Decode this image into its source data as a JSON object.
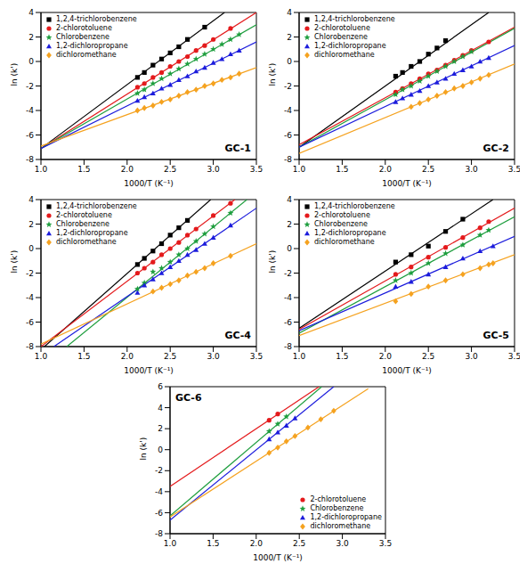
{
  "chart_data": [
    {
      "type": "scatter",
      "title": "GC-1",
      "x_label": "1000/T (K⁻¹)",
      "y_label": "ln (k')",
      "legend": "upper left",
      "xlim": [
        1.0,
        3.5
      ],
      "xticks": [
        {
          "value": 1.0,
          "label": "1.0"
        },
        1.5,
        {
          "value": 2.0,
          "label": "2.0"
        },
        2.5,
        {
          "value": 3.0,
          "label": "3.0"
        },
        3.5
      ],
      "ylim": [
        -8,
        4
      ],
      "yticks": [
        -8,
        -6,
        -4,
        -2,
        0,
        2,
        4
      ],
      "series": [
        {
          "name": "1,2,4-trichlorobenzene",
          "color": "#000000",
          "marker": "square",
          "x": [
            2.12,
            2.2,
            2.3,
            2.4,
            2.5,
            2.6,
            2.7,
            2.9
          ],
          "values": [
            -1.3,
            -0.9,
            -0.3,
            0.2,
            0.7,
            1.2,
            1.8,
            2.8
          ],
          "fit_x": [
            1.0,
            3.13
          ],
          "fit_values": [
            -7.1,
            4.0
          ]
        },
        {
          "name": "2-chlorotoluene",
          "color": "#e41a1c",
          "marker": "circle",
          "x": [
            2.12,
            2.2,
            2.3,
            2.4,
            2.5,
            2.6,
            2.7,
            2.8,
            2.9,
            3.0,
            3.2
          ],
          "values": [
            -2.1,
            -1.8,
            -1.3,
            -0.9,
            -0.4,
            0.0,
            0.4,
            0.9,
            1.3,
            1.8,
            2.7
          ],
          "fit_x": [
            1.0,
            3.5
          ],
          "fit_values": [
            -7.1,
            4.0
          ]
        },
        {
          "name": "Chlorobenzene",
          "color": "#1e9e3e",
          "marker": "star",
          "x": [
            2.12,
            2.2,
            2.3,
            2.4,
            2.5,
            2.6,
            2.7,
            2.8,
            2.9,
            3.0,
            3.1,
            3.2,
            3.3
          ],
          "values": [
            -2.6,
            -2.3,
            -1.8,
            -1.4,
            -1.0,
            -0.6,
            -0.2,
            0.2,
            0.6,
            1.0,
            1.4,
            1.8,
            2.2
          ],
          "fit_x": [
            1.0,
            3.5
          ],
          "fit_values": [
            -7.1,
            3.0
          ]
        },
        {
          "name": "1,2-dichloropropane",
          "color": "#1c1cdc",
          "marker": "triangle",
          "x": [
            2.12,
            2.2,
            2.3,
            2.4,
            2.5,
            2.6,
            2.7,
            2.8,
            2.9,
            3.0,
            3.1,
            3.2,
            3.3
          ],
          "values": [
            -3.2,
            -2.9,
            -2.6,
            -2.2,
            -1.9,
            -1.5,
            -1.2,
            -0.8,
            -0.5,
            -0.1,
            0.2,
            0.6,
            0.9
          ],
          "fit_x": [
            1.0,
            3.5
          ],
          "fit_values": [
            -7.1,
            1.6
          ]
        },
        {
          "name": "dichloromethane",
          "color": "#f5a21f",
          "marker": "diamond",
          "x": [
            2.12,
            2.2,
            2.3,
            2.4,
            2.5,
            2.6,
            2.7,
            2.8,
            2.9,
            3.0,
            3.1,
            3.2,
            3.3
          ],
          "values": [
            -4.0,
            -3.8,
            -3.6,
            -3.3,
            -3.1,
            -2.8,
            -2.5,
            -2.3,
            -2.0,
            -1.8,
            -1.5,
            -1.3,
            -1.0
          ],
          "fit_x": [
            1.0,
            3.5
          ],
          "fit_values": [
            -6.9,
            -0.5
          ]
        }
      ]
    },
    {
      "type": "scatter",
      "title": "GC-2",
      "x_label": "1000/T (K⁻¹)",
      "y_label": "ln (k')",
      "legend": "upper left",
      "xlim": [
        1.0,
        3.5
      ],
      "xticks": [
        {
          "value": 1.0,
          "label": "1.0"
        },
        1.5,
        {
          "value": 2.0,
          "label": "2.0"
        },
        2.5,
        {
          "value": 3.0,
          "label": "3.0"
        },
        3.5
      ],
      "ylim": [
        -8,
        4
      ],
      "yticks": [
        -8,
        -6,
        -4,
        -2,
        0,
        2,
        4
      ],
      "series": [
        {
          "name": "1,2,4-trichlorobenzene",
          "color": "#000000",
          "marker": "square",
          "x": [
            2.12,
            2.2,
            2.3,
            2.4,
            2.5,
            2.6,
            2.7
          ],
          "values": [
            -1.2,
            -0.9,
            -0.4,
            0.0,
            0.6,
            1.1,
            1.7
          ],
          "fit_x": [
            1.0,
            3.2
          ],
          "fit_values": [
            -7.0,
            4.0
          ]
        },
        {
          "name": "2-chlorotoluene",
          "color": "#e41a1c",
          "marker": "circle",
          "x": [
            2.12,
            2.2,
            2.3,
            2.4,
            2.5,
            2.6,
            2.7,
            2.8,
            2.9,
            3.0,
            3.2
          ],
          "values": [
            -2.5,
            -2.2,
            -1.8,
            -1.4,
            -1.0,
            -0.7,
            -0.3,
            0.1,
            0.5,
            0.9,
            1.6
          ],
          "fit_x": [
            1.0,
            3.5
          ],
          "fit_values": [
            -6.8,
            2.8
          ]
        },
        {
          "name": "Chlorobenzene",
          "color": "#1e9e3e",
          "marker": "star",
          "x": [
            2.12,
            2.2,
            2.3,
            2.4,
            2.5,
            2.6,
            2.7,
            2.8,
            2.9,
            3.0
          ],
          "values": [
            -2.7,
            -2.3,
            -2.0,
            -1.6,
            -1.2,
            -0.8,
            -0.4,
            0.0,
            0.4,
            0.8
          ],
          "fit_x": [
            1.0,
            3.5
          ],
          "fit_values": [
            -7.0,
            2.7
          ]
        },
        {
          "name": "1,2-dichloropropane",
          "color": "#1c1cdc",
          "marker": "triangle",
          "x": [
            2.12,
            2.2,
            2.3,
            2.4,
            2.5,
            2.6,
            2.7,
            2.8,
            2.9,
            3.0,
            3.1,
            3.2
          ],
          "values": [
            -3.3,
            -3.0,
            -2.7,
            -2.4,
            -2.0,
            -1.7,
            -1.4,
            -1.0,
            -0.7,
            -0.4,
            0.0,
            0.3
          ],
          "fit_x": [
            1.0,
            3.5
          ],
          "fit_values": [
            -7.0,
            1.3
          ]
        },
        {
          "name": "dichloromethane",
          "color": "#f5a21f",
          "marker": "diamond",
          "x": [
            2.3,
            2.4,
            2.5,
            2.6,
            2.7,
            2.8,
            2.9,
            3.0,
            3.1,
            3.2
          ],
          "values": [
            -3.7,
            -3.4,
            -3.1,
            -2.8,
            -2.5,
            -2.2,
            -2.0,
            -1.7,
            -1.4,
            -1.1
          ],
          "fit_x": [
            1.0,
            3.5
          ],
          "fit_values": [
            -7.5,
            -0.2
          ]
        }
      ]
    },
    {
      "type": "scatter",
      "title": "GC-4",
      "x_label": "1000/T (K⁻¹)",
      "y_label": "ln (k')",
      "legend": "upper left",
      "xlim": [
        1.0,
        3.5
      ],
      "xticks": [
        {
          "value": 1.0,
          "label": "1.0"
        },
        1.5,
        {
          "value": 2.0,
          "label": "2.0"
        },
        2.5,
        {
          "value": 3.0,
          "label": "3.0"
        },
        3.5
      ],
      "ylim": [
        -8,
        4
      ],
      "yticks": [
        -8,
        -6,
        -4,
        -2,
        0,
        2,
        4
      ],
      "series": [
        {
          "name": "1,2,4-trichlorobenzene",
          "color": "#000000",
          "marker": "square",
          "x": [
            2.12,
            2.2,
            2.3,
            2.4,
            2.5,
            2.6,
            2.7
          ],
          "values": [
            -1.3,
            -0.8,
            -0.2,
            0.4,
            1.1,
            1.7,
            2.3
          ],
          "fit_x": [
            1.04,
            2.97
          ],
          "fit_values": [
            -8.0,
            4.0
          ]
        },
        {
          "name": "2-chlorotoluene",
          "color": "#e41a1c",
          "marker": "circle",
          "x": [
            2.12,
            2.2,
            2.3,
            2.4,
            2.5,
            2.6,
            2.7,
            2.8,
            3.0,
            3.2
          ],
          "values": [
            -2.0,
            -1.6,
            -1.1,
            -0.5,
            0.0,
            0.5,
            1.1,
            1.6,
            2.7,
            3.7
          ],
          "fit_x": [
            1.0,
            3.25
          ],
          "fit_values": [
            -8.0,
            4.0
          ]
        },
        {
          "name": "Chlorobenzene",
          "color": "#1e9e3e",
          "marker": "star",
          "x": [
            2.12,
            2.2,
            2.3,
            2.4,
            2.5,
            2.6,
            2.7,
            2.8,
            2.9,
            3.0,
            3.2
          ],
          "values": [
            -3.3,
            -2.8,
            -1.9,
            -1.6,
            -1.1,
            -0.5,
            0.0,
            0.6,
            1.2,
            1.8,
            2.9
          ],
          "fit_x": [
            1.3,
            3.39
          ],
          "fit_values": [
            -8.0,
            4.0
          ]
        },
        {
          "name": "1,2-dichloropropane",
          "color": "#1c1cdc",
          "marker": "triangle",
          "x": [
            2.12,
            2.2,
            2.3,
            2.4,
            2.5,
            2.6,
            2.7,
            2.8,
            2.9,
            3.0,
            3.2
          ],
          "values": [
            -3.6,
            -3.0,
            -2.5,
            -2.0,
            -1.5,
            -1.0,
            -0.5,
            -0.1,
            0.4,
            0.9,
            1.9
          ],
          "fit_x": [
            1.15,
            3.5
          ],
          "fit_values": [
            -8.0,
            3.3
          ]
        },
        {
          "name": "dichloromethane",
          "color": "#f5a21f",
          "marker": "diamond",
          "x": [
            2.3,
            2.4,
            2.5,
            2.6,
            2.7,
            2.8,
            2.9,
            3.0,
            3.2
          ],
          "values": [
            -3.5,
            -3.2,
            -2.9,
            -2.6,
            -2.2,
            -1.9,
            -1.6,
            -1.2,
            -0.6
          ],
          "fit_x": [
            1.0,
            3.5
          ],
          "fit_values": [
            -7.8,
            0.4
          ]
        }
      ]
    },
    {
      "type": "scatter",
      "title": "GC-5",
      "x_label": "1000/T (K⁻¹)",
      "y_label": "ln (k')",
      "legend": "upper left",
      "xlim": [
        1.0,
        3.5
      ],
      "xticks": [
        {
          "value": 1.0,
          "label": "1.0"
        },
        1.5,
        {
          "value": 2.0,
          "label": "2.0"
        },
        2.5,
        {
          "value": 3.0,
          "label": "3.0"
        },
        3.5
      ],
      "ylim": [
        -8,
        4
      ],
      "yticks": [
        -8,
        -6,
        -4,
        -2,
        0,
        2,
        4
      ],
      "series": [
        {
          "name": "1,2,4-trichlorobenzene",
          "color": "#000000",
          "marker": "square",
          "x": [
            2.12,
            2.3,
            2.5,
            2.7,
            2.9
          ],
          "values": [
            -1.1,
            -0.5,
            0.2,
            1.4,
            2.4
          ],
          "fit_x": [
            1.0,
            3.25
          ],
          "fit_values": [
            -6.5,
            4.0
          ]
        },
        {
          "name": "2-chlorotoluene",
          "color": "#e41a1c",
          "marker": "circle",
          "x": [
            2.12,
            2.3,
            2.5,
            2.7,
            2.9,
            3.1,
            3.2
          ],
          "values": [
            -2.1,
            -1.5,
            -0.7,
            0.1,
            0.9,
            1.7,
            2.2
          ],
          "fit_x": [
            1.0,
            3.5
          ],
          "fit_values": [
            -6.6,
            3.3
          ]
        },
        {
          "name": "Chlorobenzene",
          "color": "#1e9e3e",
          "marker": "star",
          "x": [
            2.12,
            2.3,
            2.5,
            2.7,
            2.9,
            3.1,
            3.2
          ],
          "values": [
            -2.6,
            -2.0,
            -1.2,
            -0.4,
            0.3,
            1.1,
            1.5
          ],
          "fit_x": [
            1.0,
            3.5
          ],
          "fit_values": [
            -6.9,
            2.6
          ]
        },
        {
          "name": "1,2-dichloropropane",
          "color": "#1c1cdc",
          "marker": "triangle",
          "x": [
            2.12,
            2.3,
            2.5,
            2.7,
            2.9,
            3.1,
            3.25
          ],
          "values": [
            -3.1,
            -2.7,
            -2.1,
            -1.5,
            -0.8,
            -0.2,
            0.2
          ],
          "fit_x": [
            1.0,
            3.5
          ],
          "fit_values": [
            -6.7,
            1.0
          ]
        },
        {
          "name": "dichloromethane",
          "color": "#f5a21f",
          "marker": "diamond",
          "x": [
            2.12,
            2.3,
            2.5,
            2.7,
            2.9,
            3.1,
            3.2,
            3.25
          ],
          "values": [
            -4.3,
            -3.7,
            -3.1,
            -2.6,
            -2.1,
            -1.6,
            -1.3,
            -1.2
          ],
          "fit_x": [
            1.0,
            3.5
          ],
          "fit_values": [
            -7.1,
            -0.5
          ]
        }
      ]
    },
    {
      "type": "scatter",
      "title": "GC-6",
      "x_label": "1000/T (K⁻¹)",
      "y_label": "ln (k')",
      "legend": "lower right",
      "xlim": [
        1.0,
        3.5
      ],
      "xticks": [
        {
          "value": 1.0,
          "label": "1.0"
        },
        1.5,
        {
          "value": 2.0,
          "label": "2.0"
        },
        2.5,
        {
          "value": 3.0,
          "label": "3.0"
        },
        3.5
      ],
      "ylim": [
        -8,
        6
      ],
      "yticks": [
        -8,
        -6,
        -4,
        -2,
        0,
        2,
        4,
        6
      ],
      "series": [
        {
          "name": "2-chlorotoluene",
          "color": "#e41a1c",
          "marker": "circle",
          "x": [
            2.15,
            2.25
          ],
          "values": [
            2.8,
            3.4
          ],
          "fit_x": [
            1.0,
            2.73
          ],
          "fit_values": [
            -3.5,
            6.0
          ]
        },
        {
          "name": "Chlorobenzene",
          "color": "#1e9e3e",
          "marker": "star",
          "x": [
            2.15,
            2.25,
            2.35
          ],
          "values": [
            1.75,
            2.45,
            3.15
          ],
          "fit_x": [
            1.0,
            2.76
          ],
          "fit_values": [
            -6.3,
            6.0
          ]
        },
        {
          "name": "1,2-dichloropropane",
          "color": "#1c1cdc",
          "marker": "triangle",
          "x": [
            2.15,
            2.25,
            2.35,
            2.45
          ],
          "values": [
            1.0,
            1.65,
            2.3,
            3.0
          ],
          "fit_x": [
            1.0,
            2.9
          ],
          "fit_values": [
            -6.7,
            6.0
          ]
        },
        {
          "name": "dichloromethane",
          "color": "#f5a21f",
          "marker": "diamond",
          "x": [
            2.15,
            2.25,
            2.35,
            2.45,
            2.6,
            2.75,
            2.9
          ],
          "values": [
            -0.3,
            0.2,
            0.8,
            1.3,
            2.1,
            2.9,
            3.7
          ],
          "fit_x": [
            1.0,
            3.3
          ],
          "fit_values": [
            -6.4,
            5.8
          ]
        }
      ]
    }
  ]
}
